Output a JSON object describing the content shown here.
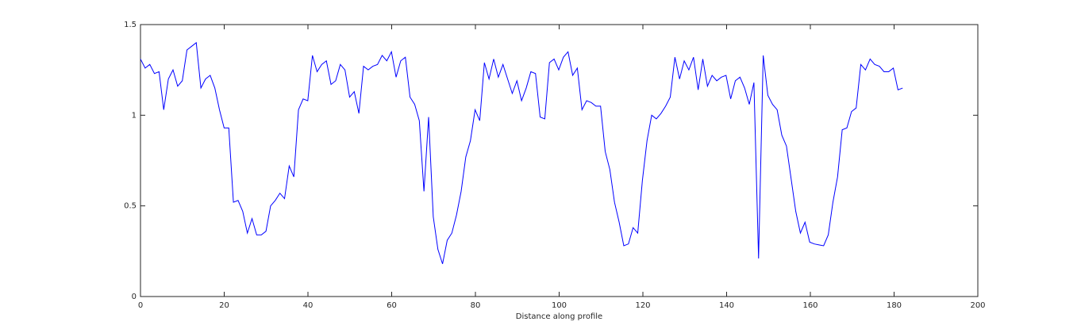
{
  "chart_data": {
    "type": "line",
    "xlabel": "Distance along profile",
    "x": [
      0,
      1.11,
      2.22,
      3.33,
      4.44,
      5.55,
      6.66,
      7.77,
      8.88,
      9.99,
      11.1,
      12.21,
      13.32,
      14.43,
      15.54,
      16.65,
      17.76,
      18.87,
      19.98,
      21.09,
      22.2,
      23.31,
      24.42,
      25.53,
      26.64,
      27.75,
      28.86,
      29.97,
      31.08,
      32.19,
      33.3,
      34.41,
      35.52,
      36.63,
      37.74,
      38.85,
      39.96,
      41.07,
      42.18,
      43.29,
      44.4,
      45.51,
      46.62,
      47.73,
      48.84,
      49.95,
      51.06,
      52.17,
      53.28,
      54.39,
      55.5,
      56.61,
      57.72,
      58.83,
      59.94,
      61.05,
      62.16,
      63.27,
      64.38,
      65.49,
      66.6,
      67.71,
      68.82,
      69.93,
      71.04,
      72.15,
      73.26,
      74.37,
      75.48,
      76.59,
      77.7,
      78.81,
      79.92,
      81.03,
      82.14,
      83.25,
      84.36,
      85.47,
      86.58,
      87.69,
      88.8,
      89.91,
      91.02,
      92.13,
      93.24,
      94.35,
      95.46,
      96.57,
      97.68,
      98.79,
      99.9,
      101.01,
      102.12,
      103.23,
      104.34,
      105.45,
      106.56,
      107.67,
      108.78,
      109.89,
      111.0,
      112.11,
      113.22,
      114.33,
      115.44,
      116.55,
      117.66,
      118.77,
      119.88,
      120.99,
      122.1,
      123.21,
      124.32,
      125.43,
      126.54,
      127.65,
      128.76,
      129.87,
      130.98,
      132.09,
      133.2,
      134.31,
      135.42,
      136.53,
      137.64,
      138.75,
      139.86,
      140.97,
      142.08,
      143.19,
      144.3,
      145.41,
      146.52,
      147.63,
      148.74,
      149.85,
      150.96,
      152.07,
      153.18,
      154.29,
      155.4,
      156.51,
      157.62,
      158.73,
      159.84,
      160.95,
      162.06,
      163.17,
      164.28,
      165.39,
      166.5,
      167.61,
      168.72,
      169.83,
      170.94,
      172.05,
      173.16,
      174.27,
      175.38,
      176.49,
      177.6,
      178.71,
      179.82,
      180.93,
      182.04
    ],
    "series": [
      {
        "color": "#0000ff",
        "values": [
          1.31,
          1.26,
          1.28,
          1.23,
          1.24,
          1.03,
          1.2,
          1.25,
          1.16,
          1.19,
          1.36,
          1.38,
          1.4,
          1.15,
          1.2,
          1.22,
          1.15,
          1.03,
          0.93,
          0.93,
          0.52,
          0.53,
          0.47,
          0.35,
          0.43,
          0.34,
          0.34,
          0.36,
          0.5,
          0.53,
          0.57,
          0.54,
          0.72,
          0.66,
          1.03,
          1.09,
          1.08,
          1.33,
          1.24,
          1.28,
          1.3,
          1.17,
          1.19,
          1.28,
          1.25,
          1.1,
          1.13,
          1.01,
          1.27,
          1.25,
          1.27,
          1.28,
          1.33,
          1.3,
          1.35,
          1.21,
          1.3,
          1.32,
          1.1,
          1.06,
          0.97,
          0.58,
          0.99,
          0.44,
          0.26,
          0.18,
          0.31,
          0.35,
          0.45,
          0.58,
          0.77,
          0.86,
          1.03,
          0.97,
          1.29,
          1.2,
          1.31,
          1.21,
          1.28,
          1.2,
          1.12,
          1.19,
          1.08,
          1.15,
          1.24,
          1.23,
          0.99,
          0.98,
          1.29,
          1.31,
          1.25,
          1.32,
          1.35,
          1.22,
          1.26,
          1.03,
          1.08,
          1.07,
          1.05,
          1.05,
          0.8,
          0.7,
          0.52,
          0.41,
          0.28,
          0.29,
          0.38,
          0.35,
          0.64,
          0.86,
          1.0,
          0.98,
          1.01,
          1.05,
          1.1,
          1.32,
          1.2,
          1.3,
          1.25,
          1.32,
          1.14,
          1.31,
          1.16,
          1.22,
          1.19,
          1.21,
          1.22,
          1.09,
          1.19,
          1.21,
          1.15,
          1.06,
          1.18,
          0.21,
          1.33,
          1.11,
          1.06,
          1.03,
          0.89,
          0.83,
          0.65,
          0.47,
          0.35,
          0.41,
          0.3,
          0.29,
          0.285,
          0.28,
          0.34,
          0.52,
          0.66,
          0.92,
          0.93,
          1.02,
          1.04,
          1.28,
          1.25,
          1.31,
          1.28,
          1.27,
          1.24,
          1.24,
          1.26,
          1.14,
          1.15
        ]
      }
    ],
    "xlim": [
      0,
      200
    ],
    "xticks": [
      0,
      20,
      40,
      60,
      80,
      100,
      120,
      140,
      160,
      180,
      200
    ],
    "ylim": [
      0,
      1.5
    ],
    "yticks": [
      0,
      0.5,
      1,
      1.5
    ]
  }
}
